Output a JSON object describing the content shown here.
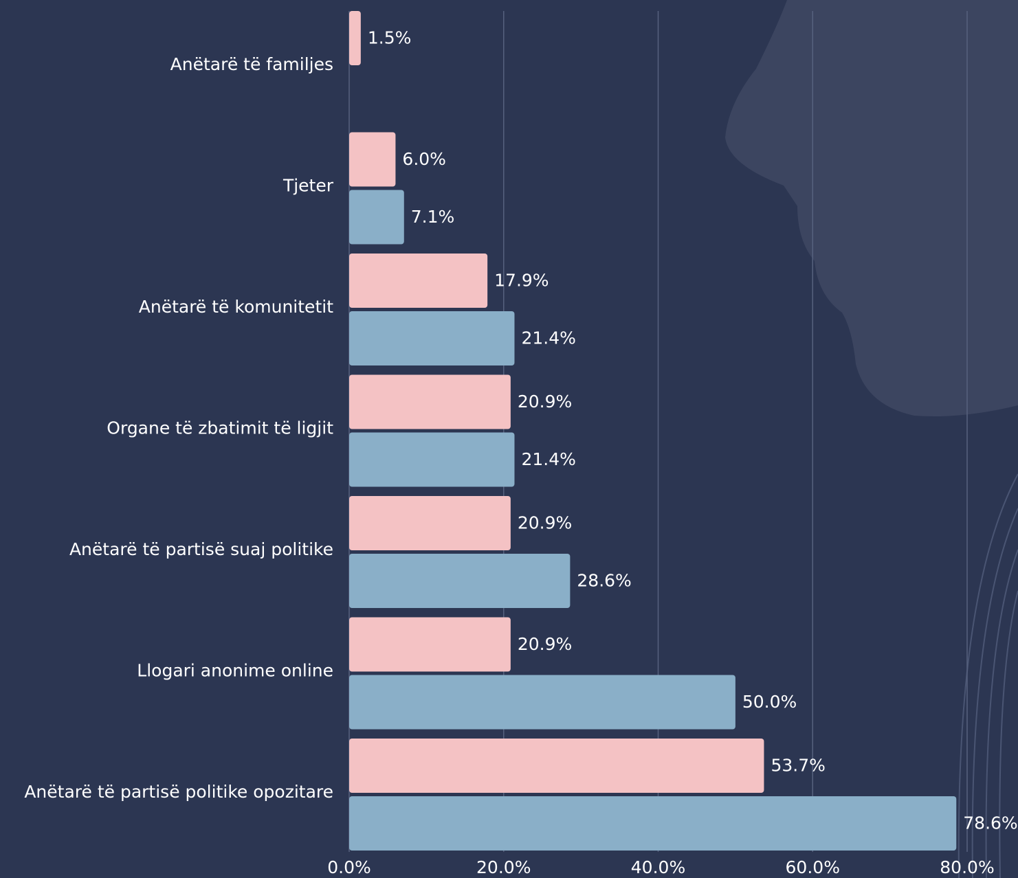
{
  "chart_data": {
    "type": "bar",
    "orientation": "horizontal",
    "categories": [
      "Anëtarë të familjes",
      "Tjeter",
      "Anëtarë të komunitetit",
      "Organe të zbatimit të ligjit",
      "Anëtarë të partisë suaj politike",
      "Llogari anonime online",
      "Anëtarë të partisë politike opozitare"
    ],
    "series": [
      {
        "color": "#f4c2c4",
        "values": [
          1.5,
          6.0,
          17.9,
          20.9,
          20.9,
          20.9,
          53.7
        ],
        "value_labels": [
          "1.5%",
          "6.0%",
          "17.9%",
          "20.9%",
          "20.9%",
          "20.9%",
          "53.7%"
        ]
      },
      {
        "color": "#8aafc8",
        "values": [
          null,
          7.1,
          21.4,
          21.4,
          28.6,
          50.0,
          78.6
        ],
        "value_labels": [
          null,
          "7.1%",
          "21.4%",
          "21.4%",
          "28.6%",
          "50.0%",
          "78.6%"
        ]
      }
    ],
    "xlim": [
      0,
      80
    ],
    "xticks": [
      {
        "value": 0,
        "label": "0.0%"
      },
      {
        "value": 20,
        "label": "20.0%"
      },
      {
        "value": 40,
        "label": "40.0%"
      },
      {
        "value": 60,
        "label": "60.0%"
      },
      {
        "value": 80,
        "label": "80.0%"
      }
    ],
    "grid": true
  }
}
